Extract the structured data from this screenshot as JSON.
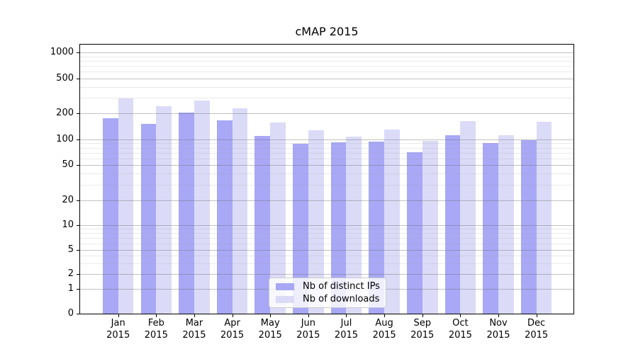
{
  "chart_data": {
    "type": "bar",
    "title": "cMAP 2015",
    "months": [
      "Jan",
      "Feb",
      "Mar",
      "Apr",
      "May",
      "Jun",
      "Jul",
      "Aug",
      "Sep",
      "Oct",
      "Nov",
      "Dec"
    ],
    "year": "2015",
    "series": [
      {
        "name": "Nb of distinct IPs",
        "color": "#a8a8f6",
        "values": [
          175,
          152,
          205,
          167,
          110,
          89,
          92,
          94,
          71,
          112,
          91,
          98
        ]
      },
      {
        "name": "Nb of downloads",
        "color": "#dbdbf8",
        "values": [
          295,
          242,
          282,
          226,
          157,
          127,
          108,
          129,
          96,
          163,
          112,
          160
        ]
      }
    ],
    "yscale": "symlog",
    "yticks": [
      0,
      1,
      2,
      5,
      10,
      20,
      50,
      100,
      200,
      500,
      1000
    ],
    "yminorticks": [
      3,
      4,
      6,
      7,
      8,
      9,
      30,
      40,
      60,
      70,
      80,
      90,
      300,
      400,
      600,
      700,
      800,
      900
    ],
    "ylim": [
      0,
      1100
    ],
    "grid": "major+minor, drawn above bars",
    "legend_position": "lower center"
  }
}
